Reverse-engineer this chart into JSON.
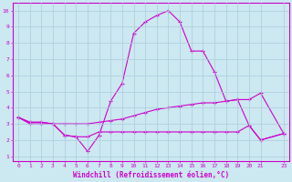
{
  "xlabel": "Windchill (Refroidissement éolien,°C)",
  "bg_color": "#cce8f0",
  "grid_color": "#aaccdd",
  "line_color": "#cc00cc",
  "xlim": [
    -0.5,
    23.5
  ],
  "ylim": [
    0.7,
    10.5
  ],
  "xticks": [
    0,
    1,
    2,
    3,
    4,
    5,
    6,
    7,
    8,
    9,
    10,
    11,
    12,
    13,
    14,
    15,
    16,
    17,
    18,
    19,
    20,
    21,
    23
  ],
  "yticks": [
    1,
    2,
    3,
    4,
    5,
    6,
    7,
    8,
    9,
    10
  ],
  "series1_x": [
    0,
    1,
    2,
    3,
    4,
    5,
    6,
    7,
    8,
    9,
    10,
    11,
    12,
    13,
    14,
    15,
    16,
    17,
    18,
    19,
    20,
    21,
    23
  ],
  "series1_y": [
    3.4,
    3.1,
    3.1,
    3.0,
    2.3,
    2.2,
    1.3,
    2.3,
    4.4,
    5.5,
    8.6,
    9.3,
    9.7,
    10.0,
    9.3,
    7.5,
    7.5,
    6.2,
    4.4,
    4.5,
    4.5,
    4.9,
    2.4
  ],
  "series2_x": [
    0,
    1,
    2,
    3,
    4,
    5,
    6,
    7,
    8,
    9,
    10,
    11,
    12,
    13,
    14,
    15,
    16,
    17,
    18,
    19,
    20,
    21,
    23
  ],
  "series2_y": [
    3.4,
    3.1,
    3.1,
    3.0,
    2.3,
    2.2,
    2.2,
    2.5,
    2.5,
    2.5,
    2.5,
    2.5,
    2.5,
    2.5,
    2.5,
    2.5,
    2.5,
    2.5,
    2.5,
    2.5,
    2.9,
    2.0,
    2.4
  ],
  "series3_x": [
    0,
    1,
    2,
    3,
    4,
    5,
    6,
    7,
    8,
    9,
    10,
    11,
    12,
    13,
    14,
    15,
    16,
    17,
    18,
    19,
    20,
    21,
    23
  ],
  "series3_y": [
    3.4,
    3.0,
    3.0,
    3.0,
    3.0,
    3.0,
    3.0,
    3.1,
    3.2,
    3.3,
    3.5,
    3.7,
    3.9,
    4.0,
    4.1,
    4.2,
    4.3,
    4.3,
    4.4,
    4.5,
    2.9,
    2.0,
    2.4
  ]
}
